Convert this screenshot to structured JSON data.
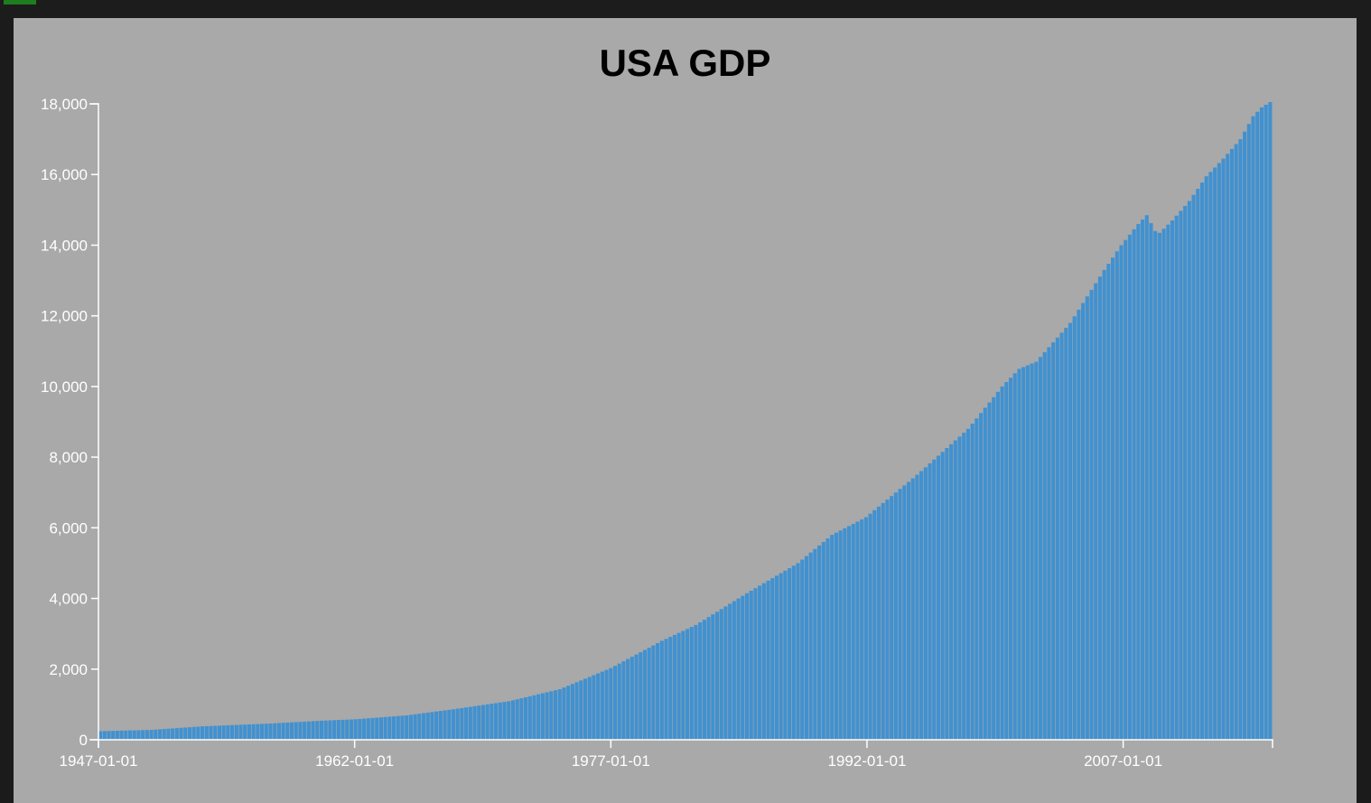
{
  "window": {
    "accent_color": "#1e7d1e",
    "frame_color": "#1c1c1c",
    "panel_color": "#a9a9a9"
  },
  "chart_data": {
    "type": "bar",
    "title": "USA GDP",
    "xlabel": "",
    "ylabel": "",
    "ylim": [
      0,
      18000
    ],
    "yticks": [
      0,
      2000,
      4000,
      6000,
      8000,
      10000,
      12000,
      14000,
      16000,
      18000
    ],
    "ytick_labels": [
      "0",
      "2,000",
      "4,000",
      "6,000",
      "8,000",
      "10,000",
      "12,000",
      "14,000",
      "16,000",
      "18,000"
    ],
    "xlim": [
      "1947-01-01",
      "2015-10-01"
    ],
    "xtick_labels": [
      "1947-01-01",
      "1962-01-01",
      "1977-01-01",
      "1992-01-01",
      "2007-01-01"
    ],
    "bar_color": "#4191d0",
    "frequency": "quarterly",
    "anchors": [
      [
        "1947-01-01",
        243
      ],
      [
        "1950-01-01",
        280
      ],
      [
        "1953-01-01",
        380
      ],
      [
        "1957-01-01",
        460
      ],
      [
        "1960-01-01",
        540
      ],
      [
        "1962-01-01",
        580
      ],
      [
        "1965-01-01",
        690
      ],
      [
        "1968-01-01",
        880
      ],
      [
        "1971-01-01",
        1090
      ],
      [
        "1974-01-01",
        1430
      ],
      [
        "1977-01-01",
        2030
      ],
      [
        "1980-01-01",
        2800
      ],
      [
        "1982-01-01",
        3250
      ],
      [
        "1985-01-01",
        4150
      ],
      [
        "1988-01-01",
        5000
      ],
      [
        "1990-01-01",
        5800
      ],
      [
        "1992-01-01",
        6300
      ],
      [
        "1995-01-01",
        7500
      ],
      [
        "1998-01-01",
        8800
      ],
      [
        "2000-01-01",
        10000
      ],
      [
        "2001-01-01",
        10500
      ],
      [
        "2002-01-01",
        10700
      ],
      [
        "2004-01-01",
        11800
      ],
      [
        "2006-01-01",
        13300
      ],
      [
        "2007-01-01",
        14000
      ],
      [
        "2008-01-01",
        14600
      ],
      [
        "2008-07-01",
        14850
      ],
      [
        "2009-01-01",
        14400
      ],
      [
        "2009-04-01",
        14350
      ],
      [
        "2010-01-01",
        14700
      ],
      [
        "2011-01-01",
        15250
      ],
      [
        "2012-01-01",
        15950
      ],
      [
        "2013-01-01",
        16450
      ],
      [
        "2014-01-01",
        17000
      ],
      [
        "2014-10-01",
        17650
      ],
      [
        "2015-04-01",
        17900
      ],
      [
        "2015-10-01",
        18050
      ]
    ]
  }
}
